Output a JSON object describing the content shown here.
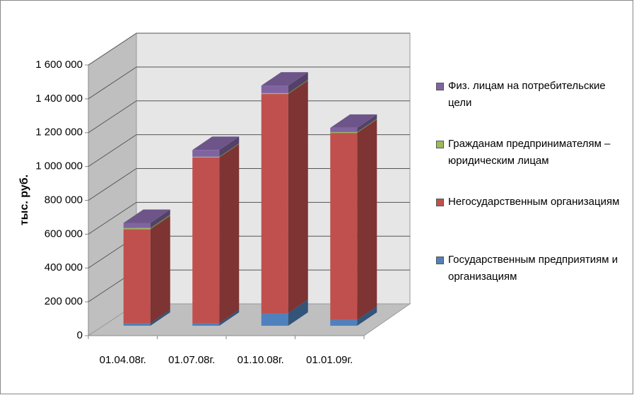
{
  "chart_data": {
    "type": "bar3d-stacked",
    "categories": [
      "01.04.08г.",
      "01.07.08г.",
      "01.10.08г.",
      "01.01.09г."
    ],
    "y_label": "тыс. руб.",
    "ylim": [
      0,
      1600000
    ],
    "yticks": [
      0,
      {
        "value": 200000,
        "label": "200 000"
      },
      {
        "value": 400000,
        "label": "400 000"
      },
      {
        "value": 600000,
        "label": "600 000"
      },
      {
        "value": 800000,
        "label": "800 000"
      },
      {
        "value": 1000000,
        "label": "1 000 000"
      },
      {
        "value": 1200000,
        "label": "1 200 000"
      },
      {
        "value": 1400000,
        "label": "1 400 000"
      },
      {
        "value": 1600000,
        "label": "1 600 000"
      }
    ],
    "grid": true,
    "legend": "right",
    "series": [
      {
        "name": "Государственным предприятиям и организациям",
        "color": "#4f81bd",
        "values": [
          15000,
          15000,
          75000,
          35000
        ]
      },
      {
        "name": "Негосударственным организациям",
        "color": "#c0504d",
        "values": [
          555000,
          980000,
          1295000,
          1105000
        ]
      },
      {
        "name": "Гражданам предпринимателям – юридическим лицам",
        "color": "#9bbb59",
        "values": [
          8000,
          4000,
          5000,
          5000
        ]
      },
      {
        "name": "Физ. лицам на потребительские цели",
        "color": "#8064a2",
        "values": [
          30000,
          40000,
          45000,
          25000
        ]
      }
    ]
  }
}
